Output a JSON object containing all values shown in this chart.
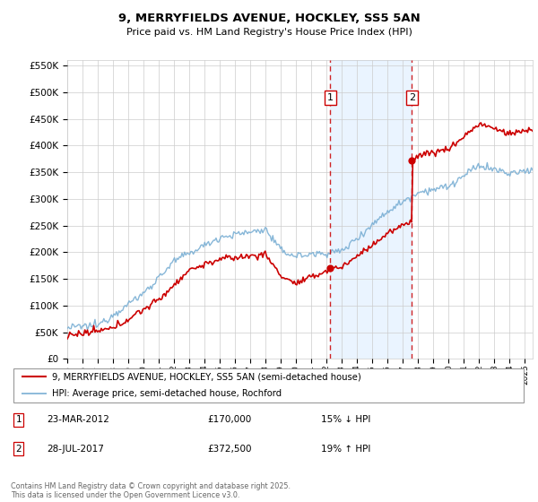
{
  "title": "9, MERRYFIELDS AVENUE, HOCKLEY, SS5 5AN",
  "subtitle": "Price paid vs. HM Land Registry's House Price Index (HPI)",
  "ylim": [
    0,
    560000
  ],
  "yticks": [
    0,
    50000,
    100000,
    150000,
    200000,
    250000,
    300000,
    350000,
    400000,
    450000,
    500000,
    550000
  ],
  "xlim_start": 1995.0,
  "xlim_end": 2025.5,
  "background_color": "#ffffff",
  "grid_color": "#cccccc",
  "sale1": {
    "date_num": 2012.23,
    "price": 170000,
    "label": "1",
    "date_str": "23-MAR-2012",
    "hpi_diff": "15% ↓ HPI"
  },
  "sale2": {
    "date_num": 2017.58,
    "price": 372500,
    "label": "2",
    "date_str": "28-JUL-2017",
    "hpi_diff": "19% ↑ HPI"
  },
  "legend_line1": "9, MERRYFIELDS AVENUE, HOCKLEY, SS5 5AN (semi-detached house)",
  "legend_line2": "HPI: Average price, semi-detached house, Rochford",
  "footnote": "Contains HM Land Registry data © Crown copyright and database right 2025.\nThis data is licensed under the Open Government Licence v3.0.",
  "line_color_red": "#cc0000",
  "line_color_blue": "#7aafd4",
  "shaded_region_color": "#ddeeff",
  "dashed_line_color": "#cc0000"
}
